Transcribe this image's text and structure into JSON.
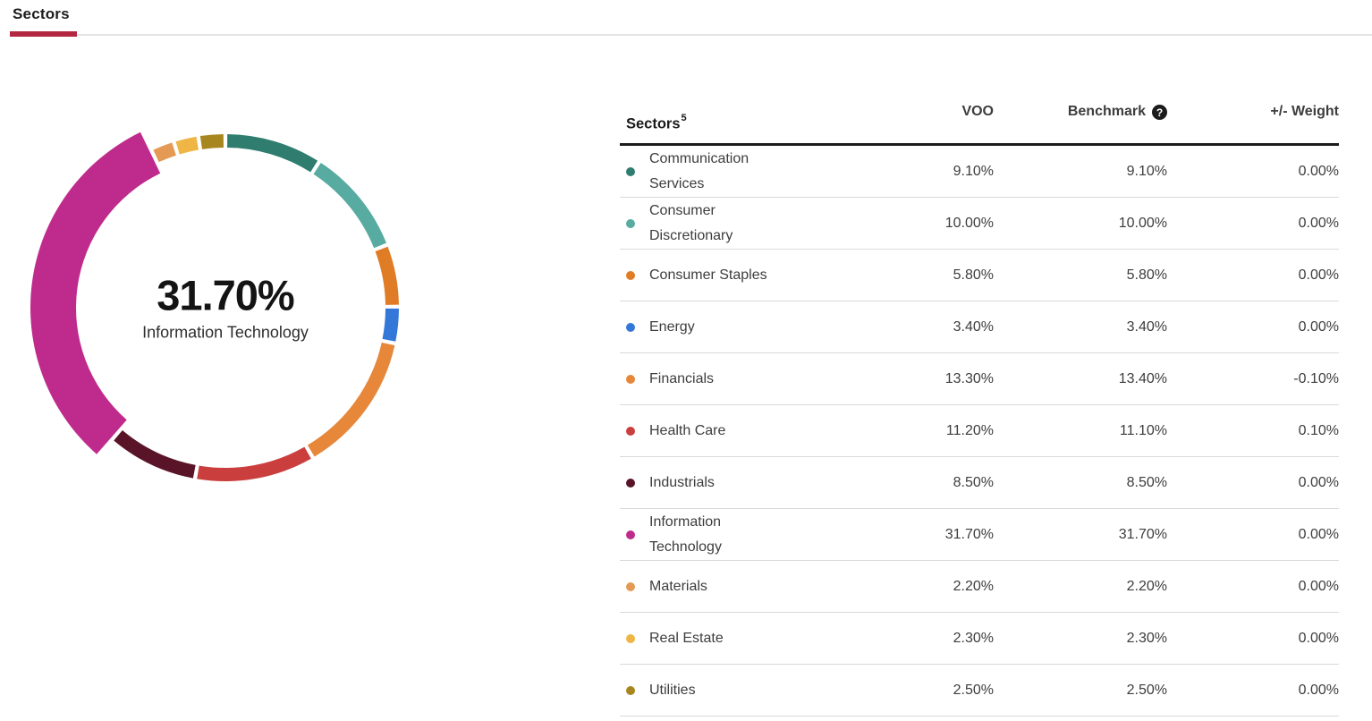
{
  "tabs": {
    "active_tab": "Sectors",
    "underline_color": "#b32740"
  },
  "chart_data": {
    "type": "donut",
    "unit": "%",
    "start_angle_deg": 0,
    "direction": "clockwise",
    "highlighted": "Information Technology",
    "center_label": {
      "value": "31.70%",
      "name": "Information Technology"
    },
    "sectors": [
      {
        "name": "Communication Services",
        "value": 9.1,
        "color": "#2f7d6f"
      },
      {
        "name": "Consumer Discretionary",
        "value": 10.0,
        "color": "#57aba0"
      },
      {
        "name": "Consumer Staples",
        "value": 5.8,
        "color": "#e07c26"
      },
      {
        "name": "Energy",
        "value": 3.4,
        "color": "#3377d8"
      },
      {
        "name": "Financials",
        "value": 13.3,
        "color": "#e6873a"
      },
      {
        "name": "Health Care",
        "value": 11.2,
        "color": "#cb3e3e"
      },
      {
        "name": "Industrials",
        "value": 8.5,
        "color": "#591427"
      },
      {
        "name": "Information Technology",
        "value": 31.7,
        "color": "#bf2b8c"
      },
      {
        "name": "Materials",
        "value": 2.2,
        "color": "#e49a55"
      },
      {
        "name": "Real Estate",
        "value": 2.3,
        "color": "#efb545"
      },
      {
        "name": "Utilities",
        "value": 2.5,
        "color": "#a8861f"
      }
    ]
  },
  "table": {
    "header": {
      "sectors_label": "Sectors",
      "sectors_superscript": "5",
      "voo": "VOO",
      "benchmark": "Benchmark",
      "help_glyph": "?",
      "weight": "+/- Weight"
    },
    "rows": [
      {
        "sector": "Communication Services",
        "voo": "9.10%",
        "benchmark": "9.10%",
        "weight": "0.00%"
      },
      {
        "sector": "Consumer Discretionary",
        "voo": "10.00%",
        "benchmark": "10.00%",
        "weight": "0.00%"
      },
      {
        "sector": "Consumer Staples",
        "voo": "5.80%",
        "benchmark": "5.80%",
        "weight": "0.00%"
      },
      {
        "sector": "Energy",
        "voo": "3.40%",
        "benchmark": "3.40%",
        "weight": "0.00%"
      },
      {
        "sector": "Financials",
        "voo": "13.30%",
        "benchmark": "13.40%",
        "weight": "-0.10%"
      },
      {
        "sector": "Health Care",
        "voo": "11.20%",
        "benchmark": "11.10%",
        "weight": "0.10%"
      },
      {
        "sector": "Industrials",
        "voo": "8.50%",
        "benchmark": "8.50%",
        "weight": "0.00%"
      },
      {
        "sector": "Information Technology",
        "voo": "31.70%",
        "benchmark": "31.70%",
        "weight": "0.00%"
      },
      {
        "sector": "Materials",
        "voo": "2.20%",
        "benchmark": "2.20%",
        "weight": "0.00%"
      },
      {
        "sector": "Real Estate",
        "voo": "2.30%",
        "benchmark": "2.30%",
        "weight": "0.00%"
      },
      {
        "sector": "Utilities",
        "voo": "2.50%",
        "benchmark": "2.50%",
        "weight": "0.00%"
      }
    ]
  }
}
